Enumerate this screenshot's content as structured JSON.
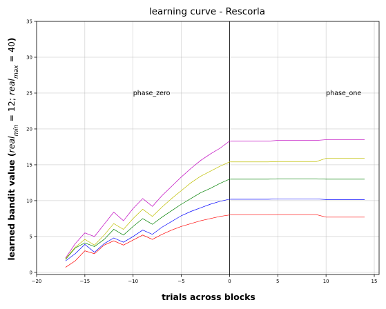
{
  "chart_data": {
    "type": "line",
    "title": "learning curve - Rescorla",
    "xlabel": "trials across blocks",
    "ylabel": "learned bandit value ($real_{min} = 12; real_{max} = 40$)",
    "xlim": [
      -20,
      15.5
    ],
    "ylim": [
      -0.3,
      35
    ],
    "xticks": [
      -20,
      -15,
      -10,
      -5,
      0,
      5,
      10,
      15
    ],
    "yticks": [
      0,
      5,
      10,
      15,
      20,
      25,
      30,
      35
    ],
    "grid": true,
    "vline_x": 0,
    "annotations": [
      {
        "text": "phase_zero",
        "x": -10,
        "y": 25
      },
      {
        "text": "phase_one",
        "x": 10,
        "y": 25
      }
    ],
    "series": [
      {
        "color": "#ff0000",
        "x": [
          -17,
          -16,
          -15,
          -14,
          -13,
          -12,
          -11,
          -10,
          -9,
          -8,
          -7,
          -6,
          -5,
          -4,
          -3,
          -2,
          -1,
          0,
          1,
          2,
          3,
          4,
          5,
          6,
          7,
          8,
          9,
          10,
          11,
          12,
          13,
          14
        ],
        "y": [
          0.7,
          1.6,
          3.0,
          2.6,
          3.8,
          4.4,
          3.8,
          4.5,
          5.2,
          4.6,
          5.3,
          5.9,
          6.4,
          6.8,
          7.2,
          7.5,
          7.8,
          8.0,
          8.0,
          8.0,
          8.0,
          8.0,
          8.05,
          8.05,
          8.05,
          8.05,
          8.05,
          7.7,
          7.7,
          7.7,
          7.7,
          7.7
        ]
      },
      {
        "color": "#0000ff",
        "x": [
          -17,
          -16,
          -15,
          -14,
          -13,
          -12,
          -11,
          -10,
          -9,
          -8,
          -7,
          -6,
          -5,
          -4,
          -3,
          -2,
          -1,
          0,
          1,
          2,
          3,
          4,
          5,
          6,
          7,
          8,
          9,
          10,
          11,
          12,
          13,
          14
        ],
        "y": [
          1.6,
          2.6,
          3.9,
          2.8,
          4.0,
          4.8,
          4.2,
          5.0,
          5.9,
          5.3,
          6.3,
          7.1,
          7.9,
          8.5,
          9.0,
          9.5,
          9.9,
          10.2,
          10.2,
          10.2,
          10.2,
          10.2,
          10.25,
          10.25,
          10.25,
          10.25,
          10.25,
          10.15,
          10.15,
          10.15,
          10.15,
          10.15
        ]
      },
      {
        "color": "#008000",
        "x": [
          -17,
          -16,
          -15,
          -14,
          -13,
          -12,
          -11,
          -10,
          -9,
          -8,
          -7,
          -6,
          -5,
          -4,
          -3,
          -2,
          -1,
          0,
          1,
          2,
          3,
          4,
          5,
          6,
          7,
          8,
          9,
          10,
          11,
          12,
          13,
          14
        ],
        "y": [
          1.8,
          3.4,
          4.1,
          3.6,
          4.6,
          6.0,
          5.2,
          6.4,
          7.5,
          6.7,
          7.7,
          8.6,
          9.5,
          10.3,
          11.1,
          11.7,
          12.4,
          13.0,
          13.0,
          13.0,
          13.0,
          13.0,
          13.05,
          13.05,
          13.05,
          13.05,
          13.05,
          13.0,
          13.0,
          13.0,
          13.0,
          13.0
        ]
      },
      {
        "color": "#bfbf00",
        "x": [
          -17,
          -16,
          -15,
          -14,
          -13,
          -12,
          -11,
          -10,
          -9,
          -8,
          -7,
          -6,
          -5,
          -4,
          -3,
          -2,
          -1,
          0,
          1,
          2,
          3,
          4,
          5,
          6,
          7,
          8,
          9,
          10,
          11,
          12,
          13,
          14
        ],
        "y": [
          1.9,
          3.5,
          4.6,
          3.8,
          5.2,
          6.8,
          6.0,
          7.5,
          8.8,
          7.8,
          9.1,
          10.3,
          11.4,
          12.5,
          13.4,
          14.1,
          14.8,
          15.4,
          15.4,
          15.4,
          15.4,
          15.4,
          15.45,
          15.45,
          15.45,
          15.45,
          15.45,
          15.9,
          15.9,
          15.9,
          15.9,
          15.9
        ]
      },
      {
        "color": "#bf00bf",
        "x": [
          -17,
          -16,
          -15,
          -14,
          -13,
          -12,
          -11,
          -10,
          -9,
          -8,
          -7,
          -6,
          -5,
          -4,
          -3,
          -2,
          -1,
          0,
          1,
          2,
          3,
          4,
          5,
          6,
          7,
          8,
          9,
          10,
          11,
          12,
          13,
          14
        ],
        "y": [
          2.0,
          4.0,
          5.5,
          5.0,
          6.7,
          8.4,
          7.2,
          8.9,
          10.3,
          9.2,
          10.7,
          12.0,
          13.3,
          14.5,
          15.6,
          16.5,
          17.3,
          18.3,
          18.3,
          18.3,
          18.3,
          18.3,
          18.4,
          18.4,
          18.4,
          18.4,
          18.4,
          18.5,
          18.5,
          18.5,
          18.5,
          18.5
        ]
      }
    ]
  }
}
